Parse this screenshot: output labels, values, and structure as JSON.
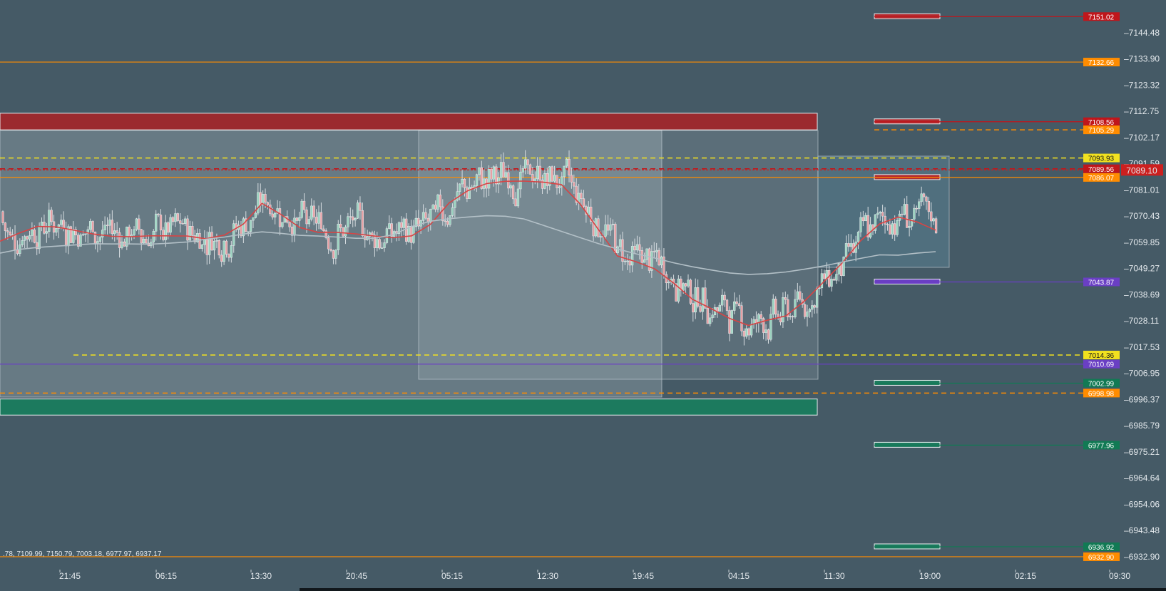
{
  "chart_data": {
    "type": "candlestick",
    "price_axis": {
      "labels": [
        "7144.48",
        "7133.90",
        "7123.32",
        "7112.75",
        "7102.17",
        "7091.59",
        "7081.01",
        "7070.43",
        "7059.85",
        "7049.27",
        "7038.69",
        "7028.11",
        "7017.53",
        "7006.95",
        "6996.37",
        "6985.79",
        "6975.21",
        "6964.64",
        "6954.06",
        "6943.48",
        "6932.90"
      ],
      "values": [
        7144.48,
        7133.9,
        7123.32,
        7112.75,
        7102.17,
        7091.59,
        7081.01,
        7070.43,
        7059.85,
        7049.27,
        7038.69,
        7028.11,
        7017.53,
        7006.95,
        6996.37,
        6985.79,
        6975.21,
        6964.64,
        6954.06,
        6943.48,
        6932.9
      ]
    },
    "time_axis": {
      "labels": [
        "21:45",
        "06:15",
        "13:30",
        "20:45",
        "05:15",
        "12:30",
        "19:45",
        "04:15",
        "11:30",
        "19:00",
        "02:15",
        "09:30"
      ]
    },
    "current_price": {
      "value": 7089.1,
      "label": "7089.10",
      "color": "#cc1f1f"
    },
    "levels": [
      {
        "value": 7151.02,
        "label": "7151.02",
        "color": "#c0161b",
        "style": "solid"
      },
      {
        "value": 7132.66,
        "label": "7132.66",
        "color": "#ff8c00",
        "style": "solid"
      },
      {
        "value": 7108.56,
        "label": "7108.56",
        "color": "#c0161b",
        "style": "solid"
      },
      {
        "value": 7105.29,
        "label": "7105.29",
        "color": "#ff8c00",
        "style": "dashed"
      },
      {
        "value": 7093.93,
        "label": "7093.93",
        "color": "#f2e11f",
        "style": "dashed"
      },
      {
        "value": 7089.56,
        "label": "7089.56",
        "color": "#c0161b",
        "style": "dashed"
      },
      {
        "value": 7086.07,
        "label": "7086.07",
        "color": "#ff8c00",
        "style": "solid"
      },
      {
        "value": 7043.87,
        "label": "7043.87",
        "color": "#6a3fc4",
        "style": "solid"
      },
      {
        "value": 7014.36,
        "label": "7014.36",
        "color": "#f2e11f",
        "style": "dashed"
      },
      {
        "value": 7010.69,
        "label": "7010.69",
        "color": "#6a3fc4",
        "style": "solid"
      },
      {
        "value": 7002.99,
        "label": "7002.99",
        "color": "#117a54",
        "style": "solid"
      },
      {
        "value": 6998.98,
        "label": "6998.98",
        "color": "#ff8c00",
        "style": "dashed"
      },
      {
        "value": 6977.96,
        "label": "6977.96",
        "color": "#117a54",
        "style": "solid"
      },
      {
        "value": 6936.92,
        "label": "6936.92",
        "color": "#117a54",
        "style": "solid"
      },
      {
        "value": 6932.9,
        "label": "6932.90",
        "color": "#ff8c00",
        "style": "solid"
      }
    ],
    "series": [
      {
        "name": "",
        "color": "#d64545",
        "role": "fast-average",
        "values": [
          7060.3,
          7063.5,
          7066.3,
          7066.1,
          7064.7,
          7063.2,
          7062.3,
          7062.1,
          7062.5,
          7062.5,
          7062.4,
          7061.3,
          7062.8,
          7067.2,
          7075.6,
          7071.2,
          7065.9,
          7063.9,
          7063.9,
          7063.3,
          7062.4,
          7061.7,
          7062.5,
          7067.1,
          7075.8,
          7080.7,
          7083.6,
          7084.5,
          7084.6,
          7084.2,
          7083.2,
          7075.4,
          7064.8,
          7054.3,
          7052.0,
          7049.1,
          7043.4,
          7036.9,
          7033.1,
          7029.1,
          7026.3,
          7028.4,
          7030.2,
          7036.2,
          7043.8,
          7051.5,
          7060.6,
          7067.3,
          7070.1,
          7068.1,
          7064.8
        ]
      },
      {
        "name": "",
        "color": "#b3c0c7",
        "role": "slow-average",
        "values": [
          7055.5,
          7057.0,
          7057.8,
          7058.3,
          7058.8,
          7059.3,
          7059.2,
          7059.2,
          7059.1,
          7059.5,
          7060.0,
          7061.1,
          7062.0,
          7063.2,
          7064.1,
          7063.5,
          7062.7,
          7062.4,
          7062.0,
          7061.5,
          7061.5,
          7062.9,
          7066.3,
          7068.4,
          7069.4,
          7070.1,
          7070.6,
          7070.4,
          7069.3,
          7066.8,
          7064.3,
          7061.8,
          7059.3,
          7057.2,
          7055.2,
          7053.5,
          7051.6,
          7050.0,
          7048.7,
          7047.5,
          7046.9,
          7047.2,
          7047.9,
          7049.0,
          7050.3,
          7051.9,
          7053.4,
          7054.8,
          7054.7,
          7055.5,
          7056.1
        ]
      }
    ],
    "bar_count": 385,
    "zones": [
      {
        "from": 7105.29,
        "to": 7112.0,
        "color": "#9b2a2f",
        "kind": "supply"
      },
      {
        "from": 6996.6,
        "to": 6990.1,
        "color": "#1c7a5e",
        "kind": "demand"
      }
    ],
    "visible_legend_text": ".78, 7109.99, 7150.79, 7003.18, 6977.97, 6937.17"
  }
}
